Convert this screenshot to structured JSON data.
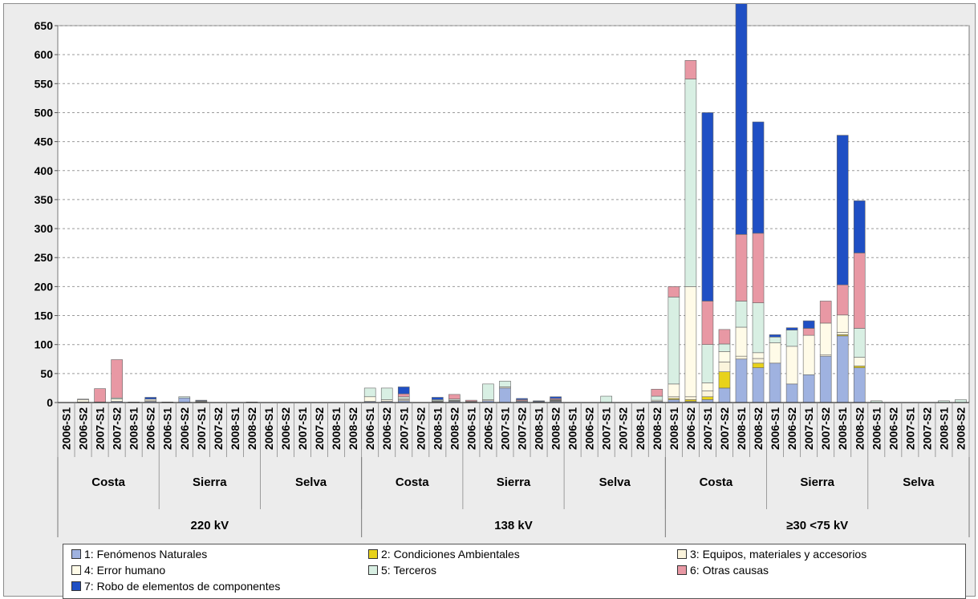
{
  "chart_data": {
    "type": "bar",
    "stacked": true,
    "ylim": [
      0,
      650
    ],
    "yticks": [
      0,
      50,
      100,
      150,
      200,
      250,
      300,
      350,
      400,
      450,
      500,
      550,
      600,
      650
    ],
    "grid": true,
    "legend_position": "bottom",
    "colors": [
      "#9fb2e0",
      "#e8d21a",
      "#fbf4dc",
      "#fffbe8",
      "#d8efe3",
      "#e898a4",
      "#1f4fc4"
    ],
    "series": [
      {
        "name": "1: Fenómenos Naturales"
      },
      {
        "name": "2: Condiciones Ambientales"
      },
      {
        "name": "3: Equipos, materiales y accesorios"
      },
      {
        "name": "4: Error humano"
      },
      {
        "name": "5: Terceros"
      },
      {
        "name": "6: Otras causas"
      },
      {
        "name": "7: Robo de elementos de componentes"
      }
    ],
    "voltage_groups": [
      "220 kV",
      "138 kV",
      "≥30 <75 kV"
    ],
    "region_groups": [
      "Costa",
      "Sierra",
      "Selva",
      "Costa",
      "Sierra",
      "Selva",
      "Costa",
      "Sierra",
      "Selva"
    ],
    "categories": [
      "2006-S1",
      "2006-S2",
      "2007-S1",
      "2007-S2",
      "2008-S1",
      "2006-S2",
      "2006-S1",
      "2006-S2",
      "2007-S1",
      "2007-S2",
      "2008-S1",
      "2008-S2",
      "2006-S1",
      "2006-S2",
      "2007-S1",
      "2007-S2",
      "2008-S1",
      "2008-S2",
      "2006-S1",
      "2006-S2",
      "2007-S1",
      "2007-S2",
      "2008-S1",
      "2008-S2",
      "2006-S1",
      "2006-S2",
      "2007-S1",
      "2007-S2",
      "2008-S1",
      "2008-S2",
      "2006-S1",
      "2006-S2",
      "2007-S1",
      "2007-S2",
      "2008-S1",
      "2008-S2",
      "2008-S1",
      "2006-S2",
      "2007-S1",
      "2007-S2",
      "2008-S1",
      "2008-S2",
      "2006-S1",
      "2006-S2",
      "2007-S1",
      "2007-S2",
      "2008-S1",
      "2008-S2",
      "2006-S1",
      "2006-S2",
      "2007-S1",
      "2007-S2",
      "2008-S1",
      "2008-S2"
    ],
    "values": [
      [
        0,
        0,
        0,
        0,
        0,
        0,
        0
      ],
      [
        1,
        0,
        0,
        4,
        1,
        0,
        0
      ],
      [
        0,
        0,
        0,
        0,
        1,
        23,
        0
      ],
      [
        2,
        0,
        0,
        4,
        2,
        66,
        0
      ],
      [
        0,
        0,
        0,
        0,
        0,
        0,
        1
      ],
      [
        2,
        0,
        2,
        2,
        0,
        0,
        3
      ],
      [
        0,
        0,
        0,
        0,
        1,
        0,
        0
      ],
      [
        8,
        0,
        0,
        0,
        2,
        0,
        0
      ],
      [
        1,
        0,
        1,
        1,
        0,
        0,
        1
      ],
      [
        0,
        0,
        0,
        0,
        0,
        0,
        0
      ],
      [
        0,
        0,
        0,
        0,
        0,
        0,
        0
      ],
      [
        0,
        0,
        0,
        0,
        1,
        0,
        0
      ],
      [
        0,
        0,
        0,
        0,
        0,
        0,
        0
      ],
      [
        0,
        0,
        0,
        0,
        0,
        0,
        0
      ],
      [
        0,
        0,
        0,
        0,
        0,
        0,
        0
      ],
      [
        0,
        0,
        0,
        0,
        0,
        0,
        0
      ],
      [
        0,
        0,
        0,
        0,
        0,
        0,
        0
      ],
      [
        0,
        0,
        0,
        0,
        0,
        0,
        0
      ],
      [
        2,
        0,
        0,
        8,
        15,
        0,
        0
      ],
      [
        2,
        0,
        0,
        3,
        20,
        0,
        0
      ],
      [
        3,
        0,
        2,
        2,
        3,
        5,
        12
      ],
      [
        0,
        0,
        0,
        0,
        0,
        0,
        0
      ],
      [
        1,
        0,
        1,
        1,
        2,
        0,
        4
      ],
      [
        2,
        0,
        1,
        1,
        2,
        8,
        0
      ],
      [
        1,
        0,
        0,
        0,
        1,
        2,
        0
      ],
      [
        3,
        0,
        0,
        2,
        27,
        0,
        0
      ],
      [
        25,
        0,
        0,
        2,
        10,
        0,
        0
      ],
      [
        2,
        0,
        0,
        0,
        1,
        2,
        2
      ],
      [
        1,
        0,
        0,
        0,
        1,
        0,
        1
      ],
      [
        2,
        0,
        1,
        1,
        1,
        2,
        3
      ],
      [
        0,
        0,
        0,
        0,
        0,
        0,
        0
      ],
      [
        0,
        0,
        0,
        0,
        0,
        0,
        0
      ],
      [
        0,
        0,
        0,
        0,
        11,
        0,
        0
      ],
      [
        0,
        0,
        0,
        0,
        0,
        0,
        0
      ],
      [
        0,
        0,
        0,
        0,
        0,
        0,
        0
      ],
      [
        2,
        0,
        0,
        2,
        7,
        12,
        0
      ],
      [
        5,
        2,
        3,
        22,
        150,
        18,
        0
      ],
      [
        2,
        3,
        5,
        190,
        358,
        32,
        0
      ],
      [
        5,
        5,
        10,
        14,
        66,
        75,
        325
      ],
      [
        25,
        28,
        17,
        18,
        13,
        25,
        0
      ],
      [
        75,
        0,
        5,
        50,
        45,
        115,
        400
      ],
      [
        60,
        8,
        8,
        10,
        86,
        120,
        192
      ],
      [
        68,
        0,
        0,
        35,
        10,
        0,
        4
      ],
      [
        32,
        0,
        0,
        65,
        28,
        0,
        4
      ],
      [
        48,
        0,
        0,
        68,
        0,
        12,
        13
      ],
      [
        80,
        0,
        2,
        55,
        0,
        38,
        0
      ],
      [
        115,
        2,
        4,
        30,
        0,
        52,
        258
      ],
      [
        60,
        3,
        0,
        15,
        50,
        130,
        90
      ],
      [
        0,
        0,
        0,
        0,
        3,
        0,
        0
      ],
      [
        0,
        0,
        0,
        0,
        0,
        0,
        0
      ],
      [
        0,
        0,
        0,
        0,
        0,
        0,
        0
      ],
      [
        0,
        0,
        0,
        0,
        0,
        0,
        0
      ],
      [
        0,
        0,
        0,
        0,
        3,
        0,
        0
      ],
      [
        0,
        0,
        0,
        0,
        5,
        0,
        0
      ]
    ]
  }
}
